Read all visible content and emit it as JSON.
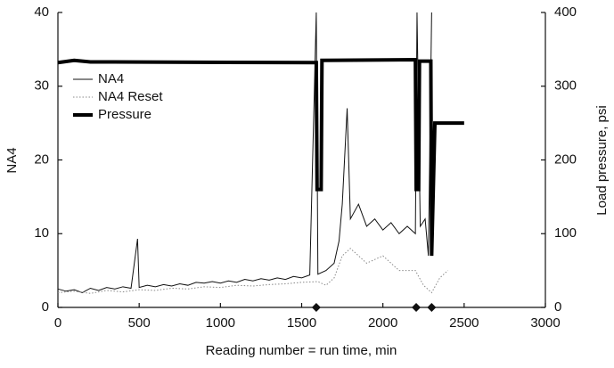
{
  "chart_data": {
    "type": "line",
    "xlabel": "Reading number = run time, min",
    "ylabel": "NA4",
    "y2label": "Load pressure, psi",
    "xlim": [
      0,
      3000
    ],
    "xticks": [
      0,
      500,
      1000,
      1500,
      2000,
      2500,
      3000
    ],
    "ylim": [
      0,
      40
    ],
    "yticks": [
      0,
      10,
      20,
      30,
      40
    ],
    "y2lim": [
      0,
      400
    ],
    "y2ticks": [
      0,
      100,
      200,
      300,
      400
    ],
    "grid": false,
    "legend": "upper left",
    "markers_x": [
      1590,
      2205,
      2300
    ],
    "series": [
      {
        "name": "NA4",
        "color": "#111111",
        "width": 1,
        "style": "solid",
        "x": [
          0,
          50,
          100,
          150,
          200,
          250,
          300,
          350,
          400,
          450,
          490,
          500,
          550,
          600,
          650,
          700,
          750,
          800,
          850,
          900,
          950,
          1000,
          1050,
          1100,
          1150,
          1200,
          1250,
          1300,
          1350,
          1400,
          1450,
          1500,
          1550,
          1590,
          1600,
          1650,
          1700,
          1730,
          1750,
          1780,
          1800,
          1850,
          1900,
          1950,
          2000,
          2050,
          2100,
          2150,
          2200,
          2210,
          2230,
          2260,
          2280,
          2300
        ],
        "values": [
          2.5,
          2.2,
          2.4,
          2.0,
          2.6,
          2.3,
          2.7,
          2.5,
          2.8,
          2.6,
          9.3,
          2.7,
          3.0,
          2.8,
          3.1,
          2.9,
          3.2,
          3.0,
          3.4,
          3.3,
          3.5,
          3.3,
          3.6,
          3.4,
          3.8,
          3.6,
          3.9,
          3.7,
          4.0,
          3.8,
          4.2,
          4.0,
          4.4,
          40,
          4.5,
          5.0,
          6.0,
          9,
          14,
          27,
          12,
          14,
          11,
          12,
          10.5,
          11.5,
          10,
          11,
          10,
          40,
          11,
          12,
          7,
          40
        ]
      },
      {
        "name": "NA4 Reset",
        "color": "#888888",
        "width": 1,
        "style": "dotted",
        "x": [
          0,
          100,
          200,
          300,
          400,
          500,
          600,
          700,
          800,
          900,
          1000,
          1100,
          1200,
          1300,
          1400,
          1500,
          1600,
          1650,
          1700,
          1750,
          1800,
          1900,
          2000,
          2100,
          2200,
          2250,
          2300,
          2350,
          2400
        ],
        "values": [
          2.0,
          2.2,
          1.9,
          2.3,
          2.1,
          2.4,
          2.3,
          2.6,
          2.5,
          2.8,
          2.7,
          3.0,
          2.9,
          3.1,
          3.2,
          3.4,
          3.5,
          3.0,
          4.0,
          7,
          8,
          6,
          7,
          5,
          5,
          3,
          2,
          4,
          5
        ]
      },
      {
        "name": "Pressure",
        "color": "#000000",
        "width": 4,
        "style": "solid",
        "axis": "y2",
        "x": [
          0,
          100,
          200,
          1590,
          1595,
          1620,
          1625,
          2200,
          2205,
          2220,
          2225,
          2295,
          2300,
          2320,
          2500
        ],
        "values": [
          332,
          335,
          333,
          332,
          160,
          160,
          335,
          336,
          160,
          160,
          334,
          334,
          70,
          250,
          250
        ]
      }
    ]
  }
}
